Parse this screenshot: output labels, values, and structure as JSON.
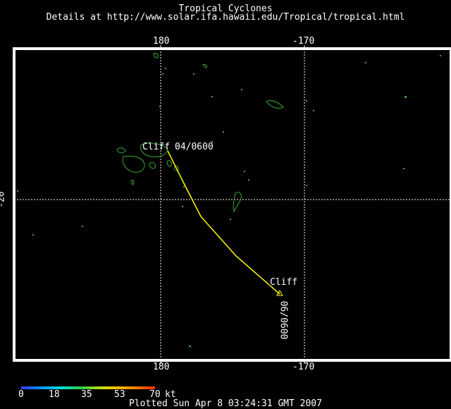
{
  "header": {
    "title": "Tropical Cyclones",
    "subtitle": "Details at http://www.solar.ifa.hawaii.edu/Tropical/tropical.html"
  },
  "map": {
    "top_ticks": [
      "180",
      "-170"
    ],
    "bottom_ticks": [
      "180",
      "-170"
    ],
    "left_ticks": [
      "-20"
    ],
    "storm": {
      "name_start": "Cliff",
      "time_start": "04/0600",
      "name_end": "Cliff",
      "time_end": "06/0600",
      "track_color": "#ffff00"
    },
    "land_color": "#33aa33"
  },
  "legend": {
    "values": [
      "0",
      "18",
      "35",
      "53",
      "70"
    ],
    "unit": "kt"
  },
  "footer": "Plotted Sun Apr 8 03:24:31 GMT 2007"
}
